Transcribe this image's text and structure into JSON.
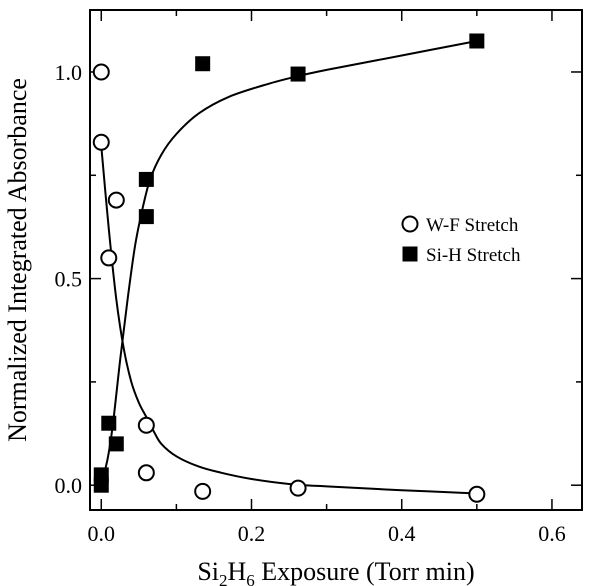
{
  "chart_data": {
    "type": "scatter",
    "xlabel": {
      "parts": [
        {
          "text": "Si",
          "sub": false
        },
        {
          "text": "2",
          "sub": true
        },
        {
          "text": "H",
          "sub": false
        },
        {
          "text": "6",
          "sub": true
        },
        {
          "text": " Exposure (Torr min)",
          "sub": false
        }
      ]
    },
    "ylabel": "Normalized Integrated Absorbance",
    "xlim": [
      -0.015,
      0.64
    ],
    "ylim": [
      -0.06,
      1.15
    ],
    "x_ticks": [
      {
        "value": 0.0,
        "label": "0.0"
      },
      {
        "value": 0.2,
        "label": "0.2"
      },
      {
        "value": 0.4,
        "label": "0.4"
      },
      {
        "value": 0.6,
        "label": "0.6"
      }
    ],
    "x_minor_ticks": [
      0.1,
      0.3,
      0.5
    ],
    "y_ticks": [
      {
        "value": 0.0,
        "label": "0.0"
      },
      {
        "value": 0.5,
        "label": "0.5"
      },
      {
        "value": 1.0,
        "label": "1.0"
      }
    ],
    "y_minor_ticks": [
      0.25,
      0.75
    ],
    "grid": false,
    "legend_position": "middle-right",
    "series": [
      {
        "name": "W-F Stretch",
        "marker": "open-circle",
        "color": "#000000",
        "points": [
          [
            0.0,
            1.0
          ],
          [
            0.0,
            0.83
          ],
          [
            0.02,
            0.69
          ],
          [
            0.01,
            0.55
          ],
          [
            0.06,
            0.145
          ],
          [
            0.06,
            0.03
          ],
          [
            0.135,
            -0.015
          ],
          [
            0.262,
            -0.007
          ],
          [
            0.5,
            -0.022
          ]
        ],
        "fit_curve": [
          [
            0.0,
            0.82
          ],
          [
            0.01,
            0.62
          ],
          [
            0.02,
            0.45
          ],
          [
            0.03,
            0.33
          ],
          [
            0.04,
            0.25
          ],
          [
            0.05,
            0.2
          ],
          [
            0.06,
            0.165
          ],
          [
            0.07,
            0.13
          ],
          [
            0.08,
            0.1
          ],
          [
            0.1,
            0.07
          ],
          [
            0.13,
            0.045
          ],
          [
            0.16,
            0.03
          ],
          [
            0.2,
            0.015
          ],
          [
            0.25,
            0.003
          ],
          [
            0.3,
            -0.003
          ],
          [
            0.4,
            -0.012
          ],
          [
            0.5,
            -0.02
          ]
        ]
      },
      {
        "name": "Si-H Stretch",
        "marker": "filled-square",
        "color": "#000000",
        "points": [
          [
            0.0,
            0.0
          ],
          [
            0.0,
            0.025
          ],
          [
            0.01,
            0.15
          ],
          [
            0.02,
            0.1
          ],
          [
            0.06,
            0.65
          ],
          [
            0.06,
            0.74
          ],
          [
            0.135,
            1.02
          ],
          [
            0.262,
            0.995
          ],
          [
            0.5,
            1.075
          ]
        ],
        "fit_curve": [
          [
            0.0,
            0.005
          ],
          [
            0.008,
            0.06
          ],
          [
            0.015,
            0.14
          ],
          [
            0.025,
            0.3
          ],
          [
            0.035,
            0.45
          ],
          [
            0.045,
            0.58
          ],
          [
            0.055,
            0.67
          ],
          [
            0.065,
            0.74
          ],
          [
            0.08,
            0.8
          ],
          [
            0.1,
            0.85
          ],
          [
            0.13,
            0.9
          ],
          [
            0.17,
            0.94
          ],
          [
            0.22,
            0.97
          ],
          [
            0.262,
            0.99
          ],
          [
            0.3,
            1.005
          ],
          [
            0.4,
            1.04
          ],
          [
            0.5,
            1.075
          ]
        ]
      }
    ]
  }
}
